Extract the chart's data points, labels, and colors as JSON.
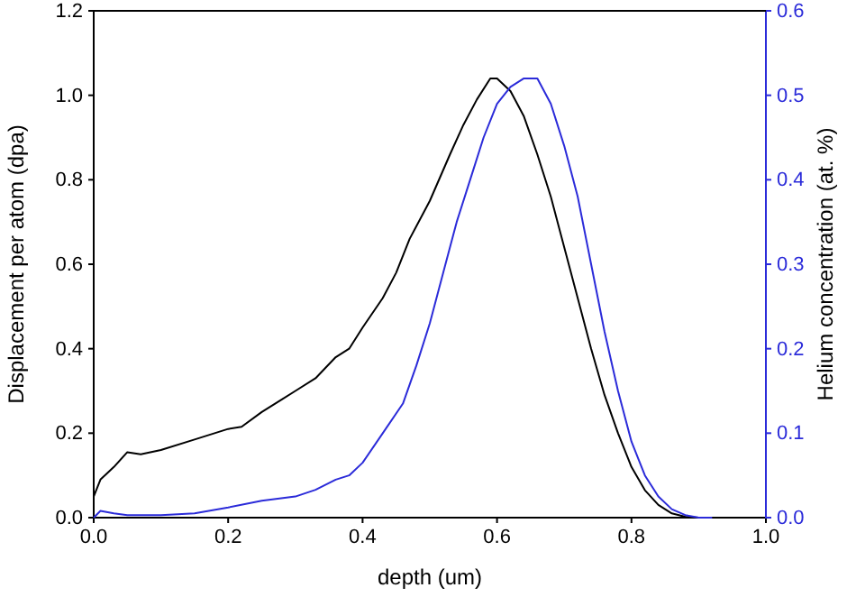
{
  "chart_data": {
    "type": "line",
    "xlabel": "depth (um)",
    "ylabel": "Displacement per atom (dpa)",
    "y2label": "Helium concentration (at. %)",
    "xlim": [
      0,
      1
    ],
    "ylim": [
      0,
      1.2
    ],
    "y2lim": [
      0,
      0.6
    ],
    "xticks": [
      {
        "value": 0,
        "label": "0.0"
      },
      {
        "value": 0.2,
        "label": "0.2"
      },
      {
        "value": 0.4,
        "label": "0.4"
      },
      {
        "value": 0.6,
        "label": "0.6"
      },
      {
        "value": 0.8,
        "label": "0.8"
      },
      {
        "value": 1,
        "label": "1.0"
      }
    ],
    "yticks": [
      {
        "value": 0,
        "label": "0.0"
      },
      {
        "value": 0.2,
        "label": "0.2"
      },
      {
        "value": 0.4,
        "label": "0.4"
      },
      {
        "value": 0.6,
        "label": "0.6"
      },
      {
        "value": 0.8,
        "label": "0.8"
      },
      {
        "value": 1,
        "label": "1.0"
      },
      {
        "value": 1.2,
        "label": "1.2"
      }
    ],
    "y2ticks": [
      {
        "value": 0,
        "label": "0.0"
      },
      0.1,
      0.2,
      0.3,
      0.4,
      0.5,
      0.6
    ],
    "grid": false,
    "marker": "none",
    "line_style": "solid",
    "series": [
      {
        "color": "#000000",
        "x": [
          0,
          0.01,
          0.03,
          0.05,
          0.07,
          0.1,
          0.15,
          0.2,
          0.22,
          0.25,
          0.28,
          0.3,
          0.33,
          0.36,
          0.38,
          0.4,
          0.43,
          0.45,
          0.47,
          0.5,
          0.53,
          0.55,
          0.57,
          0.59,
          0.6,
          0.62,
          0.64,
          0.66,
          0.68,
          0.7,
          0.72,
          0.74,
          0.76,
          0.78,
          0.8,
          0.82,
          0.84,
          0.86,
          0.88,
          0.9
        ],
        "values": [
          0.05,
          0.09,
          0.12,
          0.155,
          0.15,
          0.16,
          0.185,
          0.21,
          0.215,
          0.25,
          0.28,
          0.3,
          0.33,
          0.38,
          0.4,
          0.45,
          0.52,
          0.58,
          0.66,
          0.75,
          0.86,
          0.93,
          0.99,
          1.04,
          1.04,
          1.01,
          0.95,
          0.86,
          0.76,
          0.64,
          0.52,
          0.4,
          0.29,
          0.2,
          0.12,
          0.065,
          0.03,
          0.01,
          0.002,
          0
        ]
      },
      {
        "color": "#2b2bd9",
        "axis": "y2",
        "x": [
          0,
          0.01,
          0.03,
          0.05,
          0.1,
          0.15,
          0.2,
          0.25,
          0.3,
          0.33,
          0.36,
          0.38,
          0.4,
          0.43,
          0.46,
          0.48,
          0.5,
          0.52,
          0.54,
          0.56,
          0.58,
          0.6,
          0.62,
          0.64,
          0.66,
          0.68,
          0.7,
          0.72,
          0.74,
          0.76,
          0.78,
          0.8,
          0.82,
          0.84,
          0.86,
          0.88,
          0.9,
          0.92
        ],
        "values": [
          0,
          0.008,
          0.005,
          0.003,
          0.003,
          0.005,
          0.012,
          0.02,
          0.025,
          0.033,
          0.045,
          0.05,
          0.065,
          0.1,
          0.135,
          0.18,
          0.23,
          0.29,
          0.35,
          0.4,
          0.45,
          0.49,
          0.51,
          0.52,
          0.52,
          0.49,
          0.44,
          0.38,
          0.3,
          0.22,
          0.15,
          0.09,
          0.05,
          0.025,
          0.01,
          0.003,
          0,
          0
        ]
      }
    ]
  }
}
